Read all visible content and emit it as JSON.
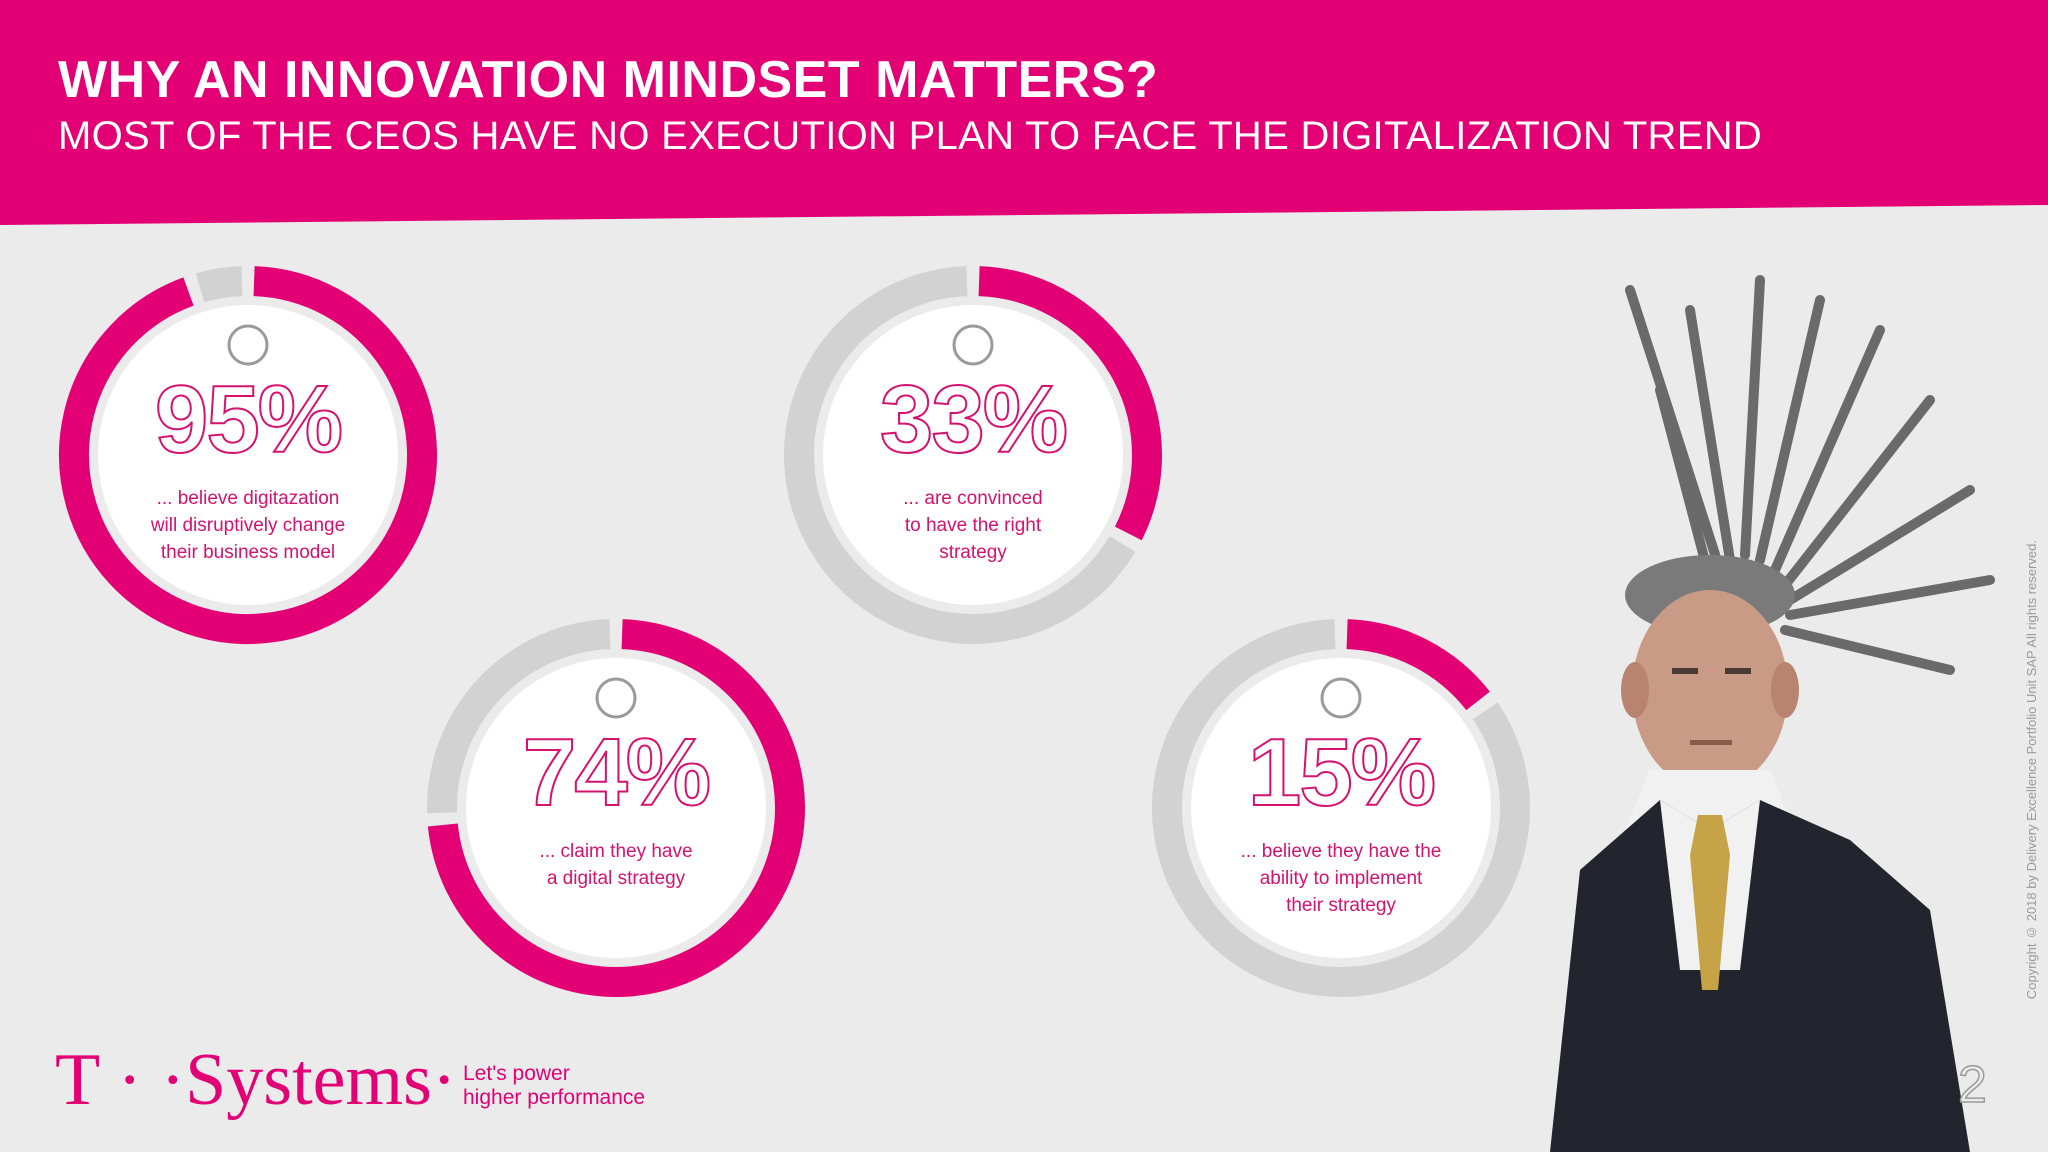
{
  "header": {
    "title": "WHY AN INNOVATION MINDSET MATTERS?",
    "subtitle": "MOST OF THE CEOS HAVE NO EXECUTION PLAN TO FACE THE DIGITALIZATION TREND"
  },
  "colors": {
    "accent": "#e20074",
    "track": "#d2d2d2",
    "background": "#ebebeb"
  },
  "stats": [
    {
      "percent_label": "95%",
      "value": 95,
      "line1": "... believe digitazation",
      "line2": "will disruptively change",
      "line3": "their business model"
    },
    {
      "percent_label": "33%",
      "value": 33,
      "line1": "... are convinced",
      "line2": "to have the right",
      "line3": "strategy"
    },
    {
      "percent_label": "74%",
      "value": 74,
      "line1": "... claim they have",
      "line2": "a digital strategy",
      "line3": ""
    },
    {
      "percent_label": "15%",
      "value": 15,
      "line1": "... believe they have the",
      "line2": "ability to implement",
      "line3": "their strategy"
    }
  ],
  "footer": {
    "logo": "T · ·Systems·",
    "tagline_line1": "Let's power",
    "tagline_line2": "higher performance",
    "copyright": "Copyright © 2018 by Delivery Excellence Portfolio Unit SAP All rights reserved.",
    "page_number": "2"
  }
}
